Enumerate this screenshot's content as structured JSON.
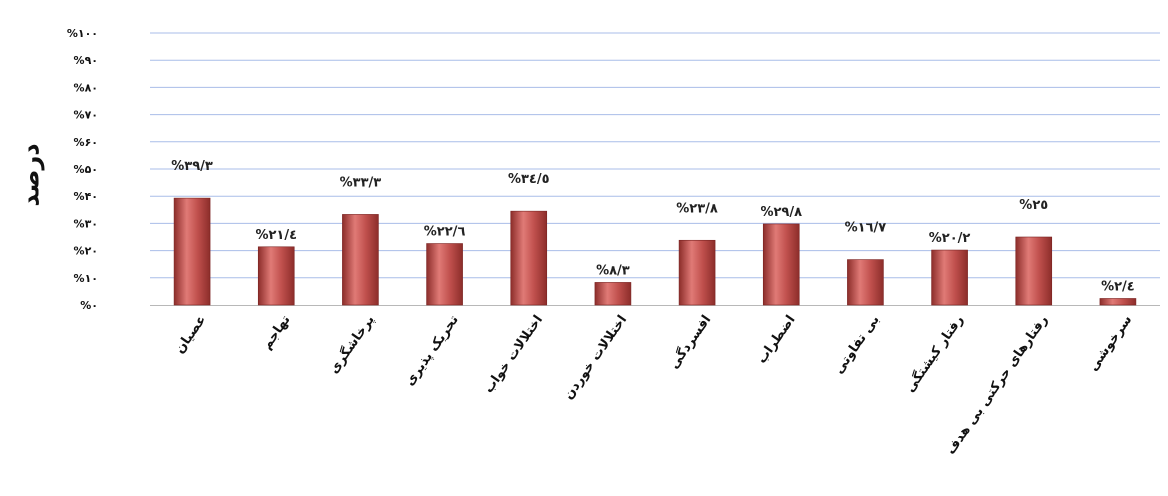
{
  "chart_data": {
    "type": "bar",
    "ylabel": "درصد",
    "ylim": [
      0,
      100
    ],
    "y_ticks": [
      "%۰",
      "%۱۰",
      "%۲۰",
      "%۳۰",
      "%۴۰",
      "%۵۰",
      "%۶۰",
      "%۷۰",
      "%۸۰",
      "%۹۰",
      "%۱۰۰"
    ],
    "grid": true,
    "categories": [
      "عصیان",
      "تهاجم",
      "پرخاشگری",
      "تحریک پذیری",
      "اختلالات خواب",
      "اختلالات خوردن",
      "افسردگی",
      "اضطراب",
      "بی تفاوتی",
      "رفتار کیشتگی",
      "رفتارهای حرکتی بی هدف",
      "سرخوشی"
    ],
    "values": [
      39.3,
      21.4,
      33.3,
      22.6,
      34.5,
      8.3,
      23.8,
      29.8,
      16.7,
      20.2,
      25,
      2.4
    ],
    "data_labels": [
      "%۳۹/۳",
      "%۲۱/٤",
      "%۳۳/۳",
      "%۲۲/٦",
      "%۳٤/٥",
      "%۸/۳",
      "%۲۳/۸",
      "%۲۹/۸",
      "%۱٦/۷",
      "%۲۰/۲",
      "%۲٥",
      "%۲/٤"
    ],
    "colors": {
      "bar": "#c0504d",
      "bar_dark": "#8c2d2a",
      "bar_light": "#e07a76",
      "grid": "#a9bde8"
    }
  }
}
